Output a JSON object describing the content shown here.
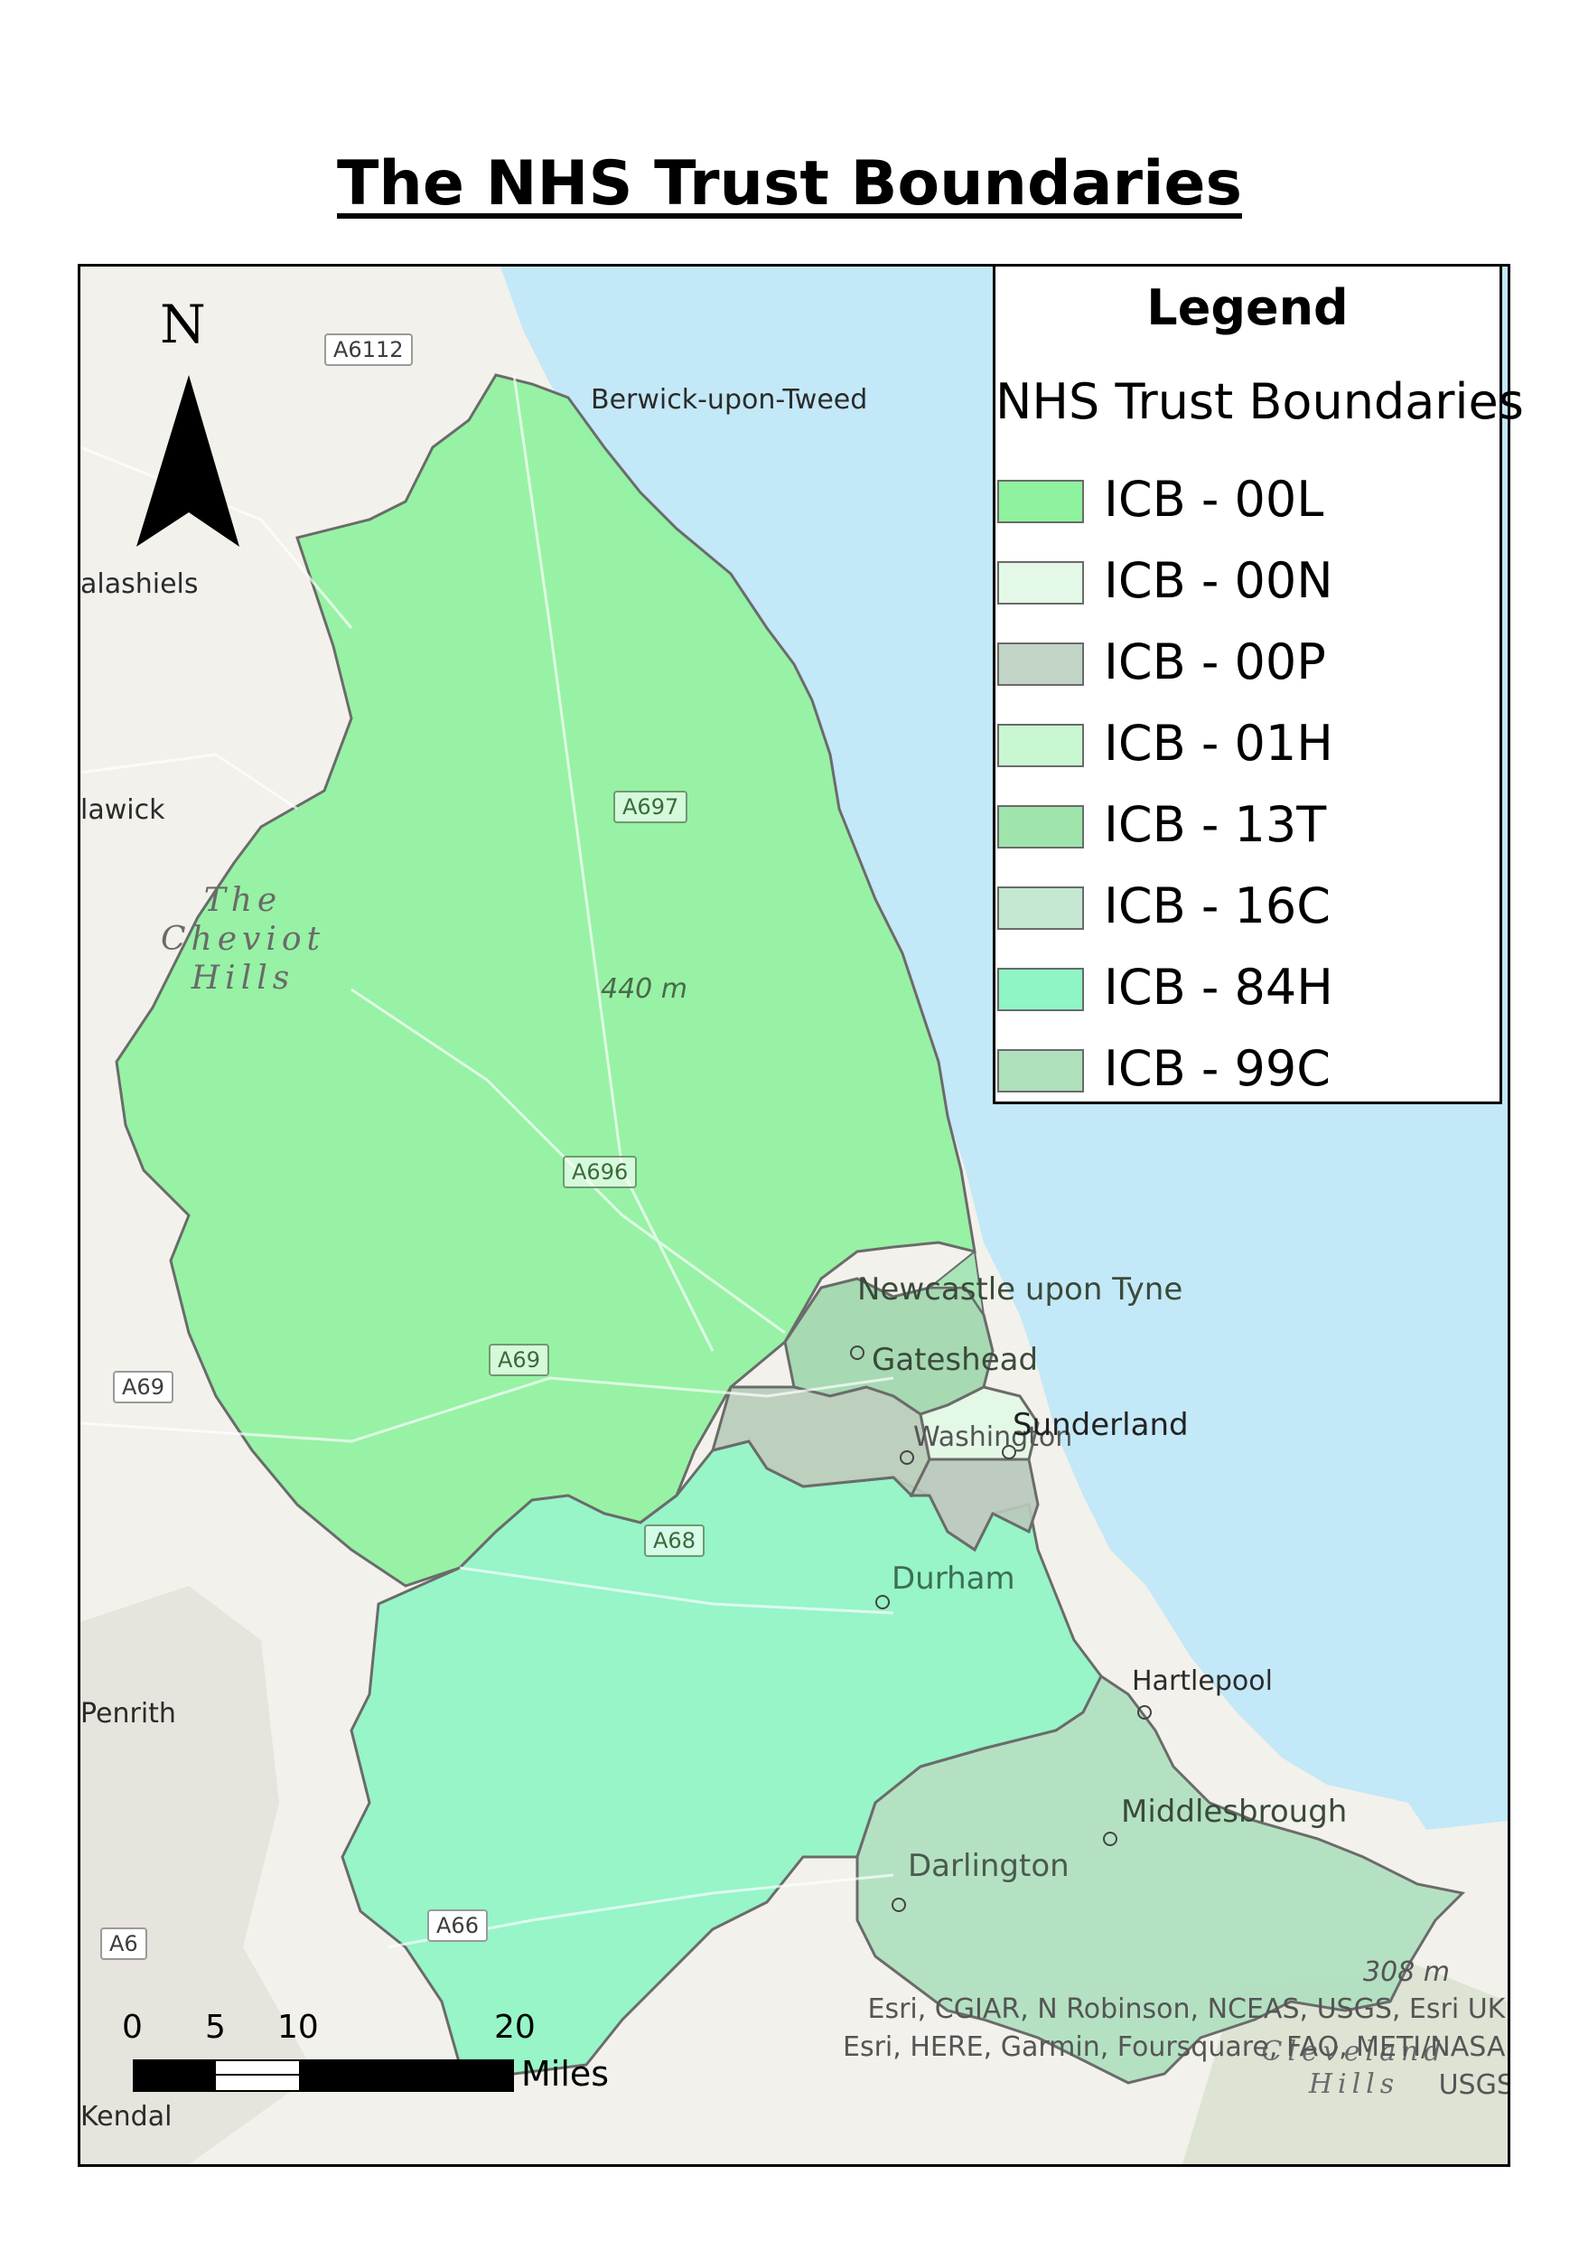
{
  "title": "The NHS Trust Boundaries",
  "legend": {
    "title": "Legend",
    "layer": "NHS Trust Boundaries",
    "items": [
      {
        "label": "ICB - 00L",
        "color": "#8ff29e"
      },
      {
        "label": "ICB - 00N",
        "color": "#e3f8e6"
      },
      {
        "label": "ICB - 00P",
        "color": "#c2d4c6"
      },
      {
        "label": "ICB - 01H",
        "color": "#c9f7d2"
      },
      {
        "label": "ICB - 13T",
        "color": "#9ee4ab"
      },
      {
        "label": "ICB - 16C",
        "color": "#c4e8d2"
      },
      {
        "label": "ICB - 84H",
        "color": "#8ff5c4"
      },
      {
        "label": "ICB - 99C",
        "color": "#aee0bc"
      }
    ]
  },
  "north_arrow": {
    "label": "N"
  },
  "places": {
    "berwick": "Berwick-upon-Tweed",
    "galashiels": "alashiels",
    "hawick": "lawick",
    "newcastle": "Newcastle upon Tyne",
    "gateshead": "Gateshead",
    "washington": "Washington",
    "sunderland": "Sunderland",
    "durham": "Durham",
    "hartlepool": "Hartlepool",
    "middlesbrough": "Middlesbrough",
    "darlington": "Darlington",
    "penrith": "Penrith",
    "kendal": "Kendal"
  },
  "roads": {
    "a6112": "A6112",
    "a697": "A697",
    "a696": "A696",
    "a69_center": "A69",
    "a69_west": "A69",
    "a68": "A68",
    "a66": "A66",
    "a6": "A6"
  },
  "terrain": {
    "cheviot_line1": "The",
    "cheviot_line2": "Cheviot",
    "cheviot_line3": "Hills",
    "peak1": "440 m",
    "peak2": "308 m",
    "cleveland_line1": "Cleveland",
    "cleveland_line2": "Hills"
  },
  "scale_bar": {
    "ticks": [
      "0",
      "5",
      "10",
      "20"
    ],
    "unit": "Miles"
  },
  "attribution": {
    "line1": "Esri, CGIAR, N Robinson, NCEAS, USGS, Esri UK,",
    "line2": "Esri, HERE, Garmin, Foursquare, FAO, METI/NASA,",
    "line3": "USGS"
  },
  "colors": {
    "sea": "#c3e8f7",
    "land": "#f2f1ec",
    "boundary": "#6b6b6b"
  }
}
